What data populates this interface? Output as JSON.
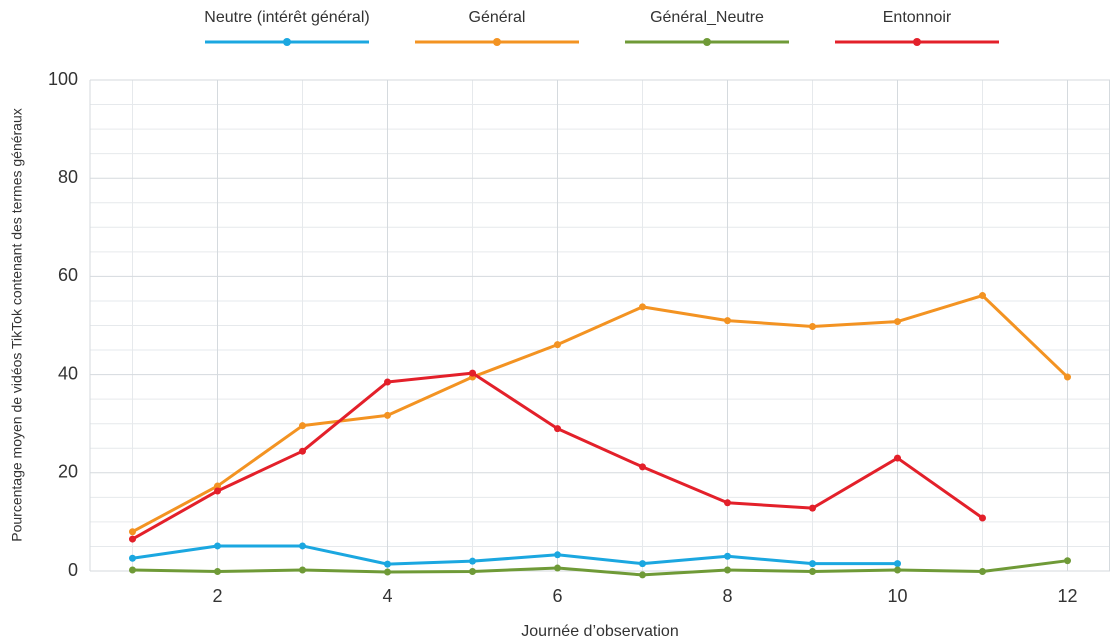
{
  "chart_data": {
    "type": "line",
    "x_label": "Journée d’observation",
    "y_label": "Pourcentage moyen de vidéos TikTok contenant des termes généraux",
    "x": [
      1,
      2,
      3,
      4,
      5,
      6,
      7,
      8,
      9,
      10,
      11,
      12
    ],
    "series": [
      {
        "name": "Neutre (intérêt général)",
        "color": "#1ba7e0",
        "values": [
          2.6,
          5.1,
          5.1,
          1.4,
          2.0,
          3.3,
          1.5,
          3.0,
          1.5,
          1.5,
          null,
          null
        ]
      },
      {
        "name": "Général",
        "color": "#f39322",
        "values": [
          8.0,
          17.3,
          29.6,
          31.7,
          39.5,
          46.1,
          53.8,
          51.0,
          49.8,
          50.8,
          56.1,
          39.5
        ]
      },
      {
        "name": "Général_Neutre",
        "color": "#6f9a37",
        "values": [
          0.2,
          -0.1,
          0.2,
          -0.2,
          -0.1,
          0.6,
          -0.8,
          0.2,
          -0.1,
          0.2,
          -0.1,
          2.1
        ]
      },
      {
        "name": "Entonnoir",
        "color": "#e3202a",
        "values": [
          6.5,
          16.3,
          24.4,
          38.5,
          40.3,
          29.0,
          21.2,
          13.9,
          12.8,
          23.0,
          10.8,
          null
        ]
      }
    ],
    "xlim": [
      0.5,
      12.5
    ],
    "xticks": [
      2,
      4,
      6,
      8,
      10,
      12
    ],
    "ylim": [
      0,
      100
    ],
    "yticks": [
      0,
      20,
      40,
      60,
      80,
      100
    ],
    "grid": true,
    "x_minor_divisions": 2,
    "y_minor_divisions": 4,
    "legend": "top"
  }
}
